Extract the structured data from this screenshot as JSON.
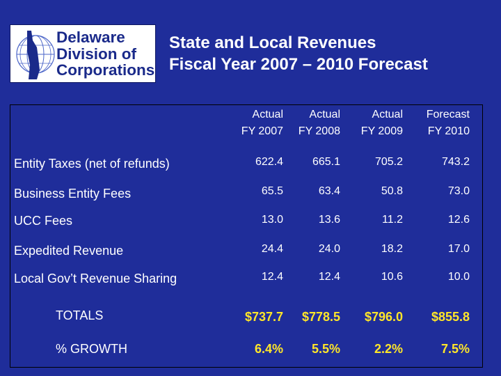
{
  "logo": {
    "lines": [
      "Delaware",
      "Division of",
      "Corporations"
    ],
    "icon": "delaware-globe-icon"
  },
  "title": {
    "line1": "State and Local Revenues",
    "line2": "Fiscal Year 2007 – 2010 Forecast"
  },
  "columns": [
    {
      "line1": "Actual",
      "line2": "FY 2007"
    },
    {
      "line1": "Actual",
      "line2": "FY 2008"
    },
    {
      "line1": "Actual",
      "line2": "FY 2009"
    },
    {
      "line1": "Forecast",
      "line2": "FY 2010"
    }
  ],
  "rows": [
    {
      "label": "Entity Taxes  (net of refunds)",
      "values": [
        "622.4",
        "665.1",
        "705.2",
        "743.2"
      ]
    },
    {
      "label": "Business Entity Fees",
      "values": [
        "65.5",
        "63.4",
        "50.8",
        "73.0"
      ]
    },
    {
      "label": "UCC Fees",
      "values": [
        "13.0",
        "13.6",
        "11.2",
        "12.6"
      ]
    },
    {
      "label": "Expedited Revenue",
      "values": [
        "24.4",
        "24.0",
        "18.2",
        "17.0"
      ]
    },
    {
      "label": "Local Gov’t Revenue Sharing",
      "values": [
        "12.4",
        "12.4",
        "10.6",
        "10.0"
      ]
    }
  ],
  "totals": {
    "label": "TOTALS",
    "values": [
      "$737.7",
      "$778.5",
      "$796.0",
      "$855.8"
    ]
  },
  "growth": {
    "label": "% GROWTH",
    "values": [
      "6.4%",
      "5.5%",
      "2.2%",
      "7.5%"
    ]
  },
  "colors": {
    "background": "#1f2d9a",
    "highlight": "#ffe629",
    "text": "#ffffff"
  }
}
